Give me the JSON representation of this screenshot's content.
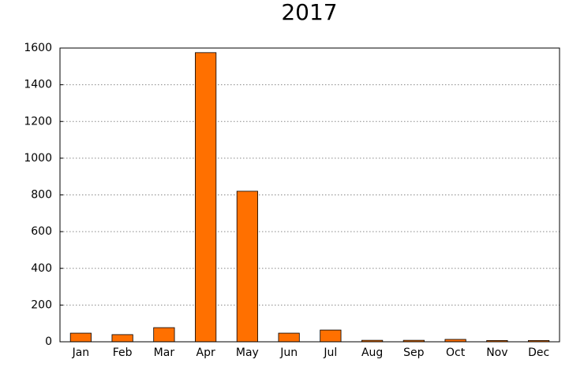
{
  "chart_data": {
    "type": "bar",
    "title": "2017",
    "categories": [
      "Jan",
      "Feb",
      "Mar",
      "Apr",
      "May",
      "Jun",
      "Jul",
      "Aug",
      "Sep",
      "Oct",
      "Nov",
      "Dec"
    ],
    "values": [
      47,
      39,
      77,
      1575,
      820,
      47,
      64,
      8,
      8,
      13,
      7,
      7
    ],
    "color": "#ff7000",
    "ylim": [
      0,
      1600
    ],
    "yticks": [
      0,
      200,
      400,
      600,
      800,
      1000,
      1200,
      1400,
      1600
    ],
    "grid": true
  }
}
